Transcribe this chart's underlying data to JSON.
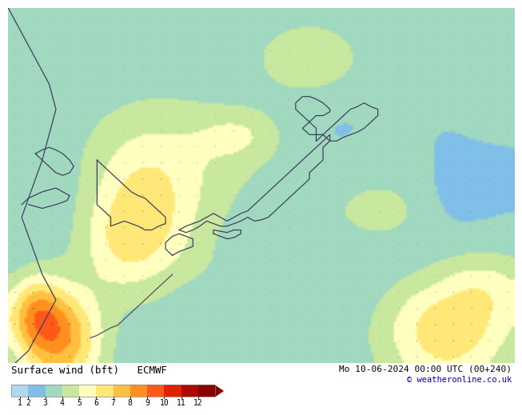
{
  "title_left": "Surface wind (bft)   ECMWF",
  "title_right": "Mo 10-06-2024 00:00 UTC (00+240)",
  "copyright": "© weatheronline.co.uk",
  "colorbar_levels": [
    1,
    2,
    3,
    4,
    5,
    6,
    7,
    8,
    9,
    10,
    11,
    12
  ],
  "colorbar_colors": [
    "#b0d8f0",
    "#80c0e8",
    "#a0d8c0",
    "#c8e8a0",
    "#ffffc0",
    "#ffe878",
    "#ffc040",
    "#ff9020",
    "#ff5818",
    "#e02000",
    "#b00800",
    "#880000"
  ],
  "fig_bg": "#ffffff",
  "lon_min": 118,
  "lon_max": 155,
  "lat_min": 24,
  "lat_max": 52,
  "wind_seed": 42,
  "arrow_seed": 77
}
